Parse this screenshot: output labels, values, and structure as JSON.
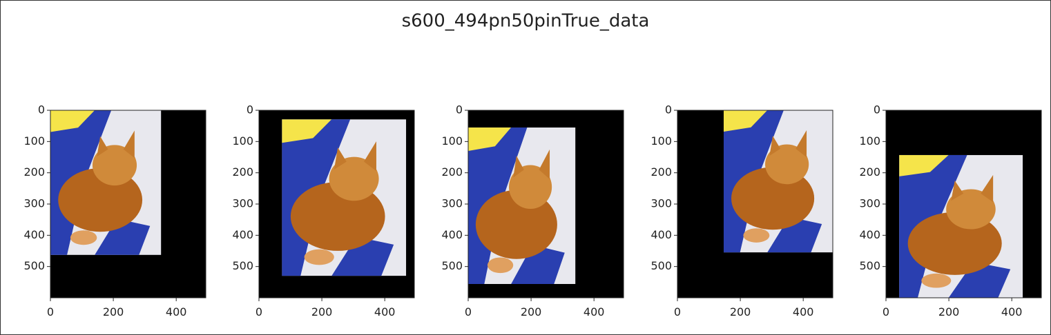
{
  "title": "s600_494pn50pinTrue_data",
  "chart_data": [
    {
      "type": "image",
      "xlim": [
        0,
        494
      ],
      "ylim": [
        600,
        0
      ],
      "xticks": [
        0,
        200,
        400
      ],
      "yticks": [
        0,
        100,
        200,
        300,
        400,
        500
      ],
      "image_extent": {
        "x": [
          0,
          352
        ],
        "y": [
          0,
          463
        ]
      }
    },
    {
      "type": "image",
      "xlim": [
        0,
        494
      ],
      "ylim": [
        600,
        0
      ],
      "xticks": [
        0,
        200,
        400
      ],
      "yticks": [
        0,
        100,
        200,
        300,
        400,
        500
      ],
      "image_extent": {
        "x": [
          73,
          468
        ],
        "y": [
          29,
          530
        ]
      }
    },
    {
      "type": "image",
      "xlim": [
        0,
        494
      ],
      "ylim": [
        600,
        0
      ],
      "xticks": [
        0,
        200,
        400
      ],
      "yticks": [
        0,
        100,
        200,
        300,
        400,
        500
      ],
      "image_extent": {
        "x": [
          0,
          341
        ],
        "y": [
          55,
          556
        ]
      }
    },
    {
      "type": "image",
      "xlim": [
        0,
        494
      ],
      "ylim": [
        600,
        0
      ],
      "xticks": [
        0,
        200,
        400
      ],
      "yticks": [
        0,
        100,
        200,
        300,
        400,
        500
      ],
      "image_extent": {
        "x": [
          147,
          494
        ],
        "y": [
          0,
          455
        ]
      }
    },
    {
      "type": "image",
      "xlim": [
        0,
        494
      ],
      "ylim": [
        600,
        0
      ],
      "xticks": [
        0,
        200,
        400
      ],
      "yticks": [
        0,
        100,
        200,
        300,
        400,
        500
      ],
      "image_extent": {
        "x": [
          42,
          435
        ],
        "y": [
          143,
          600
        ]
      }
    }
  ]
}
